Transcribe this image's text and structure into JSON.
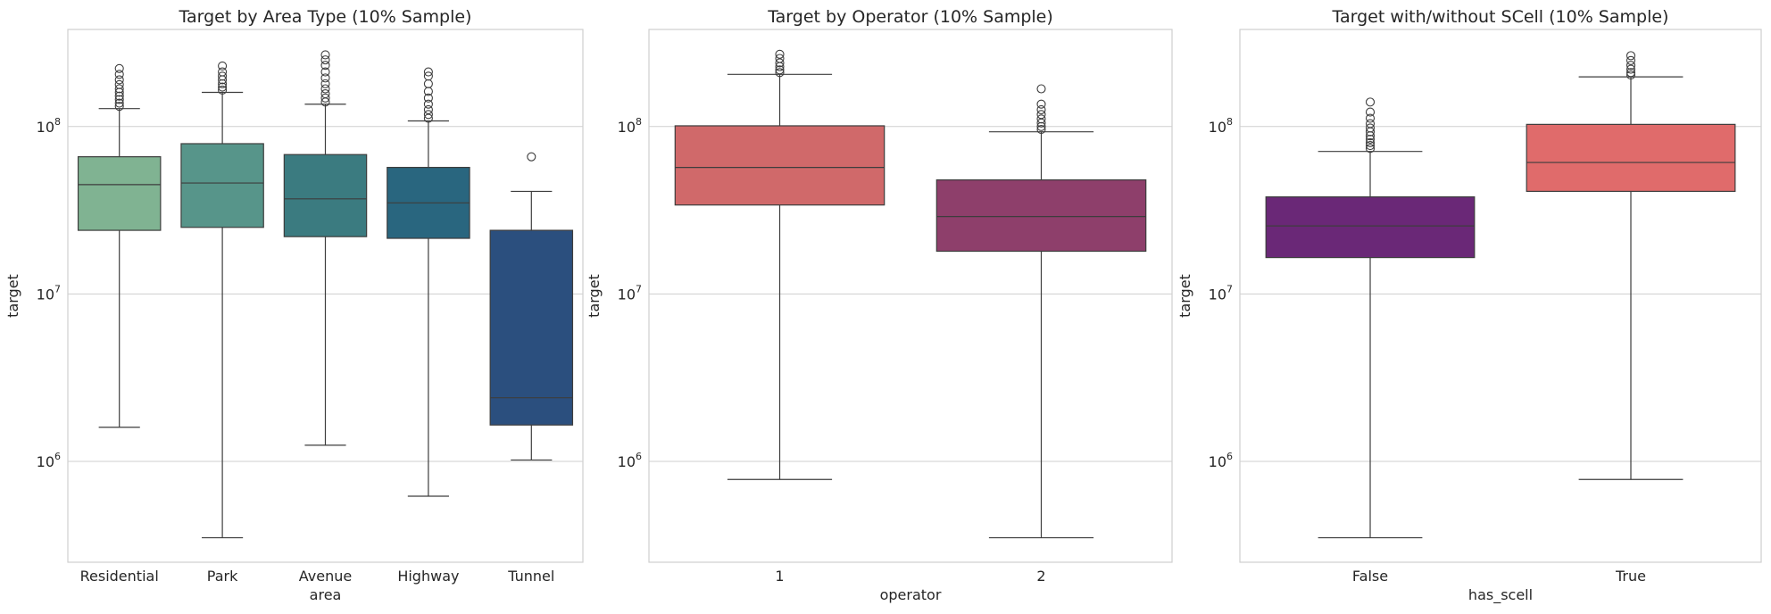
{
  "chart_data": [
    {
      "type": "box",
      "title": "Target by Area Type (10% Sample)",
      "xlabel": "area",
      "ylabel": "target",
      "yscale": "log",
      "ylim": [
        250000,
        380000000
      ],
      "yticks": [
        {
          "base": "10",
          "exp": "6",
          "value": 1000000
        },
        {
          "base": "10",
          "exp": "7",
          "value": 10000000
        },
        {
          "base": "10",
          "exp": "8",
          "value": 100000000
        }
      ],
      "grid": "horizontal",
      "categories": [
        "Residential",
        "Park",
        "Avenue",
        "Highway",
        "Tunnel"
      ],
      "boxes": [
        {
          "category": "Residential",
          "whislo": 1600000,
          "q1": 24000000,
          "med": 45000000,
          "q3": 66000000,
          "whishi": 128000000,
          "color": "#80b392",
          "fliers": [
            132000000,
            138000000,
            145000000,
            152000000,
            160000000,
            168000000,
            178000000,
            190000000,
            205000000,
            222000000
          ]
        },
        {
          "category": "Park",
          "whislo": 350000,
          "q1": 25000000,
          "med": 46000000,
          "q3": 79000000,
          "whishi": 160000000,
          "color": "#57958a",
          "fliers": [
            165000000,
            172000000,
            180000000,
            190000000,
            200000000,
            212000000,
            230000000
          ]
        },
        {
          "category": "Avenue",
          "whislo": 1250000,
          "q1": 22000000,
          "med": 37000000,
          "q3": 68000000,
          "whishi": 136000000,
          "color": "#3b7b80",
          "fliers": [
            140000000,
            148000000,
            157000000,
            168000000,
            180000000,
            195000000,
            212000000,
            232000000,
            250000000,
            268000000
          ]
        },
        {
          "category": "Highway",
          "whislo": 620000,
          "q1": 21500000,
          "med": 35000000,
          "q3": 57000000,
          "whishi": 108000000,
          "color": "#29667f",
          "fliers": [
            112000000,
            118000000,
            126000000,
            136000000,
            148000000,
            162000000,
            180000000,
            200000000,
            212000000
          ]
        },
        {
          "category": "Tunnel",
          "whislo": 1020000,
          "q1": 1650000,
          "med": 2400000,
          "q3": 24000000,
          "whishi": 41000000,
          "color": "#2b4f7e",
          "fliers": [
            66000000
          ]
        }
      ]
    },
    {
      "type": "box",
      "title": "Target by Operator (10% Sample)",
      "xlabel": "operator",
      "ylabel": "target",
      "yscale": "log",
      "ylim": [
        250000,
        380000000
      ],
      "yticks": [
        {
          "base": "10",
          "exp": "6",
          "value": 1000000
        },
        {
          "base": "10",
          "exp": "7",
          "value": 10000000
        },
        {
          "base": "10",
          "exp": "8",
          "value": 100000000
        }
      ],
      "grid": "horizontal",
      "categories": [
        "1",
        "2"
      ],
      "boxes": [
        {
          "category": "1",
          "whislo": 780000,
          "q1": 34000000,
          "med": 57000000,
          "q3": 101000000,
          "whishi": 205000000,
          "color": "#d0696a",
          "fliers": [
            210000000,
            218000000,
            228000000,
            240000000,
            255000000,
            270000000
          ]
        },
        {
          "category": "2",
          "whislo": 350000,
          "q1": 18000000,
          "med": 29000000,
          "q3": 48000000,
          "whishi": 93000000,
          "color": "#8e3f6b",
          "fliers": [
            96000000,
            100000000,
            105000000,
            111000000,
            118000000,
            126000000,
            136000000,
            168000000
          ]
        }
      ]
    },
    {
      "type": "box",
      "title": "Target with/without SCell (10% Sample)",
      "xlabel": "has_scell",
      "ylabel": "target",
      "yscale": "log",
      "ylim": [
        250000,
        380000000
      ],
      "yticks": [
        {
          "base": "10",
          "exp": "6",
          "value": 1000000
        },
        {
          "base": "10",
          "exp": "7",
          "value": 10000000
        },
        {
          "base": "10",
          "exp": "8",
          "value": 100000000
        }
      ],
      "grid": "horizontal",
      "categories": [
        "False",
        "True"
      ],
      "boxes": [
        {
          "category": "False",
          "whislo": 350000,
          "q1": 16500000,
          "med": 25500000,
          "q3": 38000000,
          "whishi": 71000000,
          "color": "#6a2877",
          "fliers": [
            74000000,
            77000000,
            80000000,
            84000000,
            88000000,
            93000000,
            98000000,
            104000000,
            112000000,
            122000000,
            140000000
          ]
        },
        {
          "category": "True",
          "whislo": 780000,
          "q1": 41000000,
          "med": 61000000,
          "q3": 103000000,
          "whishi": 198000000,
          "color": "#e06b6b",
          "fliers": [
            203000000,
            210000000,
            220000000,
            232000000,
            248000000,
            265000000
          ]
        }
      ]
    }
  ]
}
